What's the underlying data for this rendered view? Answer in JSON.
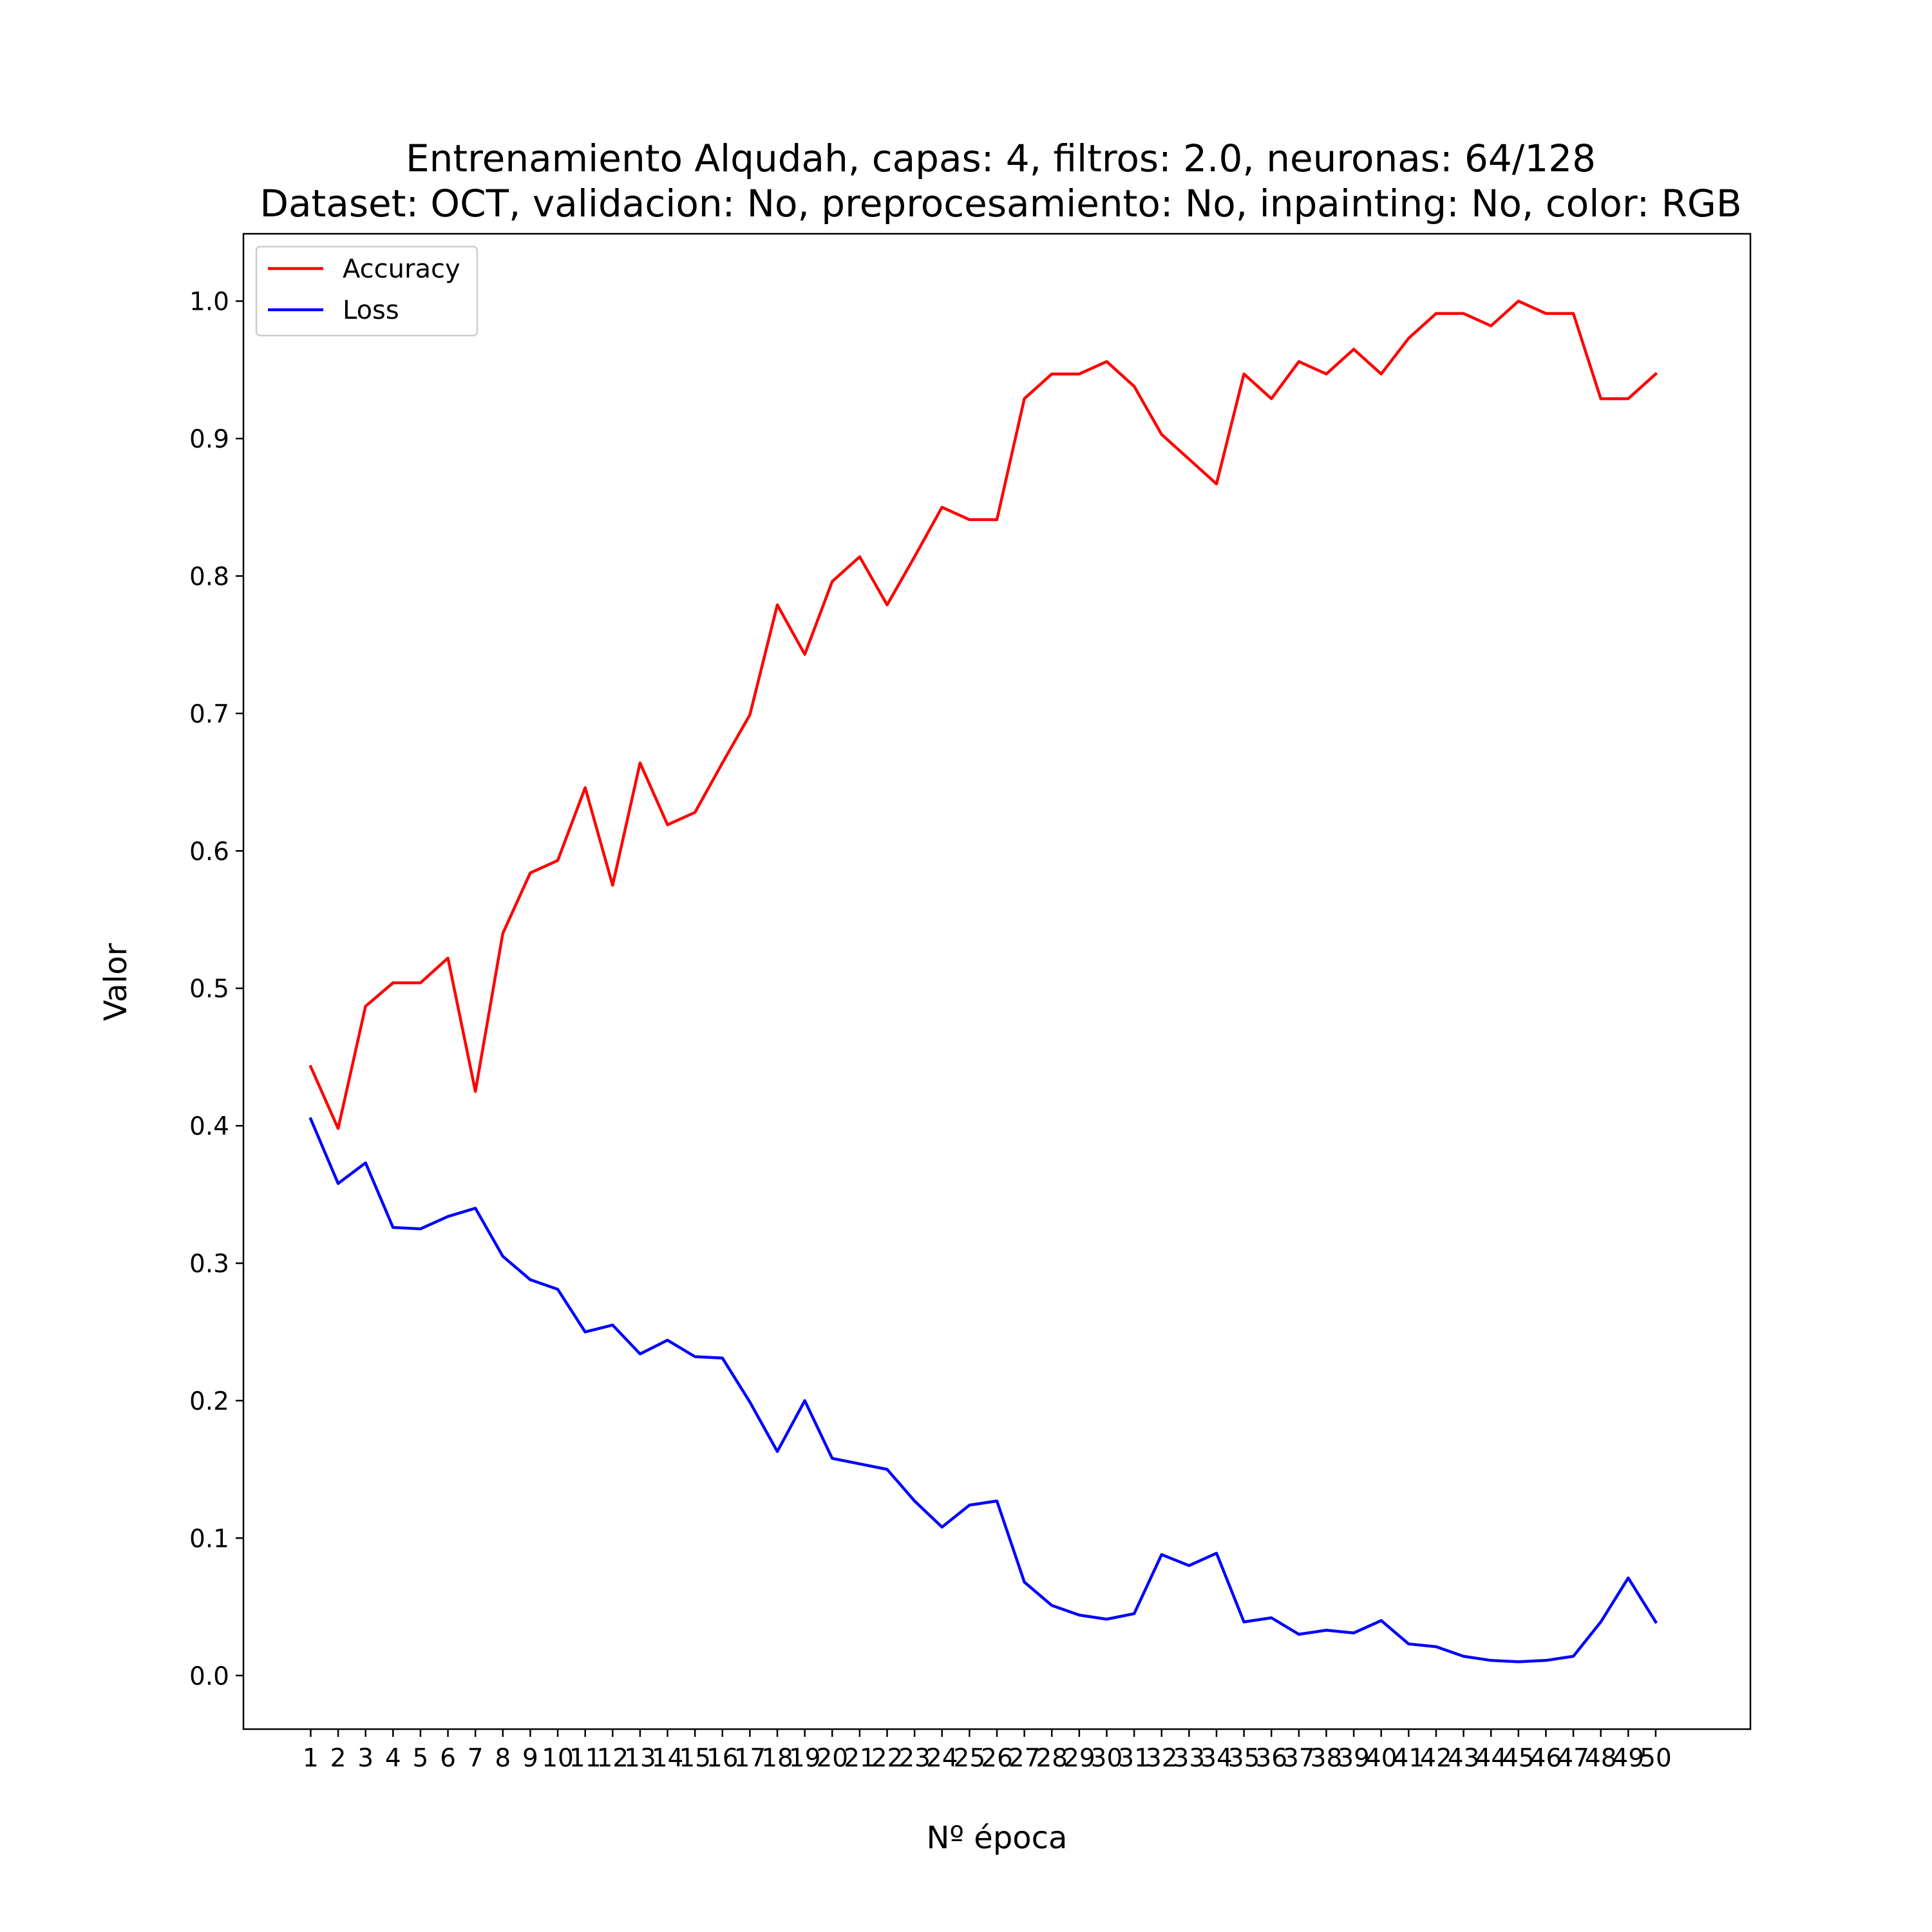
{
  "chart_data": {
    "type": "line",
    "title": "Entrenamiento Alqudah, capas: 4, filtros: 2.0, neuronas: 64/128",
    "subtitle": "Dataset: OCT, validacion: No, preprocesamiento: No, inpainting: No, color: RGB",
    "xlabel": "Nº época",
    "ylabel": "Valor",
    "x": [
      1,
      2,
      3,
      4,
      5,
      6,
      7,
      8,
      9,
      10,
      11,
      12,
      13,
      14,
      15,
      16,
      17,
      18,
      19,
      20,
      21,
      22,
      23,
      24,
      25,
      26,
      27,
      28,
      29,
      30,
      31,
      32,
      33,
      34,
      35,
      36,
      37,
      38,
      39,
      40,
      41,
      42,
      43,
      44,
      45,
      46,
      47,
      48,
      49,
      50
    ],
    "x_ticks": [
      "1",
      "2",
      "3",
      "4",
      "5",
      "6",
      "7",
      "8",
      "9",
      "10",
      "11",
      "12",
      "13",
      "14",
      "15",
      "16",
      "17",
      "18",
      "19",
      "20",
      "21",
      "22",
      "23",
      "24",
      "25",
      "26",
      "27",
      "28",
      "29",
      "30",
      "31",
      "32",
      "33",
      "34",
      "35",
      "36",
      "37",
      "38",
      "39",
      "40",
      "41",
      "42",
      "43",
      "44",
      "45",
      "46",
      "47",
      "48",
      "49",
      "50"
    ],
    "y_ticks": [
      "0.0",
      "0.1",
      "0.2",
      "0.3",
      "0.4",
      "0.5",
      "0.6",
      "0.7",
      "0.8",
      "0.9",
      "1.0"
    ],
    "y_tick_values": [
      0.0,
      0.1,
      0.2,
      0.3,
      0.4,
      0.5,
      0.6,
      0.7,
      0.8,
      0.9,
      1.0
    ],
    "ylim": [
      -0.039,
      1.049
    ],
    "xlim": [
      -1.45,
      53.45
    ],
    "grid": false,
    "legend_position": "top-left",
    "series": [
      {
        "name": "Accuracy",
        "color": "#ff0000",
        "values": [
          0.443,
          0.398,
          0.487,
          0.504,
          0.504,
          0.522,
          0.425,
          0.54,
          0.584,
          0.593,
          0.646,
          0.575,
          0.664,
          0.619,
          0.628,
          0.664,
          0.699,
          0.779,
          0.743,
          0.796,
          0.814,
          0.779,
          0.814,
          0.85,
          0.841,
          0.841,
          0.929,
          0.947,
          0.947,
          0.956,
          0.938,
          0.903,
          0.885,
          0.867,
          0.947,
          0.929,
          0.956,
          0.947,
          0.965,
          0.947,
          0.973,
          0.991,
          0.991,
          0.982,
          1.0,
          0.991,
          0.991,
          0.929,
          0.929,
          0.947
        ]
      },
      {
        "name": "Loss",
        "color": "#0000ff",
        "values": [
          0.405,
          0.358,
          0.373,
          0.326,
          0.325,
          0.334,
          0.34,
          0.305,
          0.288,
          0.281,
          0.25,
          0.255,
          0.234,
          0.244,
          0.232,
          0.231,
          0.199,
          0.163,
          0.2,
          0.158,
          0.154,
          0.15,
          0.127,
          0.108,
          0.124,
          0.127,
          0.068,
          0.051,
          0.044,
          0.041,
          0.045,
          0.088,
          0.08,
          0.089,
          0.039,
          0.042,
          0.03,
          0.033,
          0.031,
          0.04,
          0.023,
          0.021,
          0.014,
          0.011,
          0.01,
          0.011,
          0.014,
          0.039,
          0.071,
          0.039
        ]
      }
    ]
  }
}
